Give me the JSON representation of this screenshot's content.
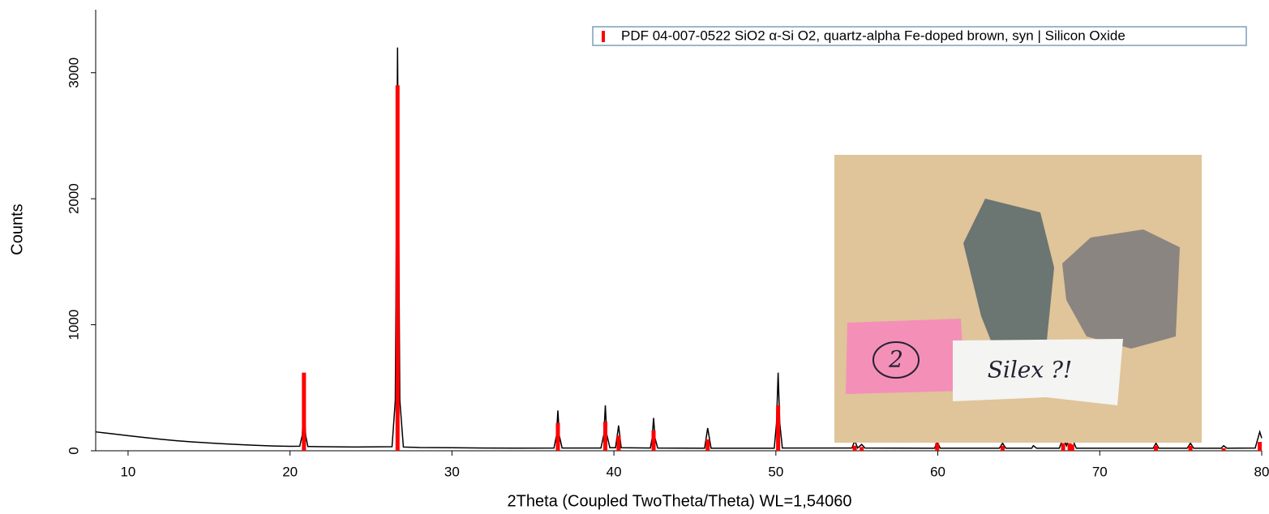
{
  "chart_data": {
    "type": "line",
    "xlabel": "2Theta (Coupled TwoTheta/Theta) WL=1,54060",
    "ylabel": "Counts",
    "color": "#000000",
    "x": [
      8,
      9,
      10,
      11,
      12,
      13,
      14,
      15,
      16,
      17,
      18,
      19,
      20,
      20.6,
      20.75,
      20.86,
      20.97,
      21.1,
      22,
      24,
      26.3,
      26.5,
      26.58,
      26.64,
      26.7,
      26.78,
      27,
      28,
      30,
      32,
      34,
      36.3,
      36.45,
      36.54,
      36.63,
      36.8,
      39.2,
      39.38,
      39.47,
      39.56,
      39.75,
      40.1,
      40.29,
      40.45,
      42.25,
      42.36,
      42.45,
      42.54,
      42.7,
      45.6,
      45.79,
      46,
      49.9,
      50.04,
      50.14,
      50.24,
      50.4,
      54.7,
      54.87,
      55.05,
      55.3,
      55.5,
      59.8,
      59.96,
      60.15,
      63.8,
      64,
      64.2,
      65.8,
      65.9,
      66.1,
      67.5,
      67.74,
      67.95,
      68.14,
      68.35,
      68.55,
      73.3,
      73.47,
      73.65,
      75.4,
      75.6,
      75.8,
      77.5,
      77.65,
      77.85,
      79.6,
      79.88,
      80
    ],
    "values": [
      150,
      135,
      120,
      105,
      92,
      80,
      70,
      62,
      55,
      48,
      43,
      38,
      35,
      36,
      120,
      350,
      120,
      34,
      32,
      30,
      32,
      400,
      2000,
      3200,
      2000,
      400,
      30,
      26,
      24,
      22,
      21,
      22,
      120,
      320,
      120,
      22,
      22,
      130,
      360,
      130,
      24,
      24,
      200,
      24,
      22,
      100,
      260,
      100,
      22,
      20,
      180,
      20,
      20,
      220,
      620,
      220,
      22,
      22,
      80,
      22,
      50,
      22,
      20,
      70,
      20,
      20,
      60,
      20,
      20,
      40,
      20,
      20,
      100,
      40,
      130,
      80,
      20,
      20,
      60,
      20,
      20,
      60,
      20,
      20,
      40,
      20,
      22,
      150,
      100
    ],
    "reference": {
      "name": "PDF 04-007-0522 SiO2 α-Si O2, quartz-alpha Fe-doped brown, syn | Silicon Oxide",
      "color": "#ff0000",
      "x": [
        20.86,
        26.64,
        36.54,
        39.47,
        40.29,
        42.45,
        45.79,
        50.14,
        54.87,
        55.3,
        59.96,
        64.0,
        67.74,
        68.14,
        68.3,
        73.47,
        75.6,
        77.65,
        79.88
      ],
      "values": [
        620,
        2900,
        220,
        230,
        120,
        160,
        90,
        360,
        40,
        30,
        60,
        40,
        60,
        60,
        50,
        40,
        40,
        20,
        70
      ]
    },
    "xlim": [
      8,
      80
    ],
    "xticks": [
      10,
      20,
      30,
      40,
      50,
      60,
      70,
      80
    ],
    "ylim": [
      0,
      3500
    ],
    "yticks": [
      0,
      1000,
      2000,
      3000
    ],
    "annotations": [
      "2",
      "Silex ?!"
    ]
  }
}
